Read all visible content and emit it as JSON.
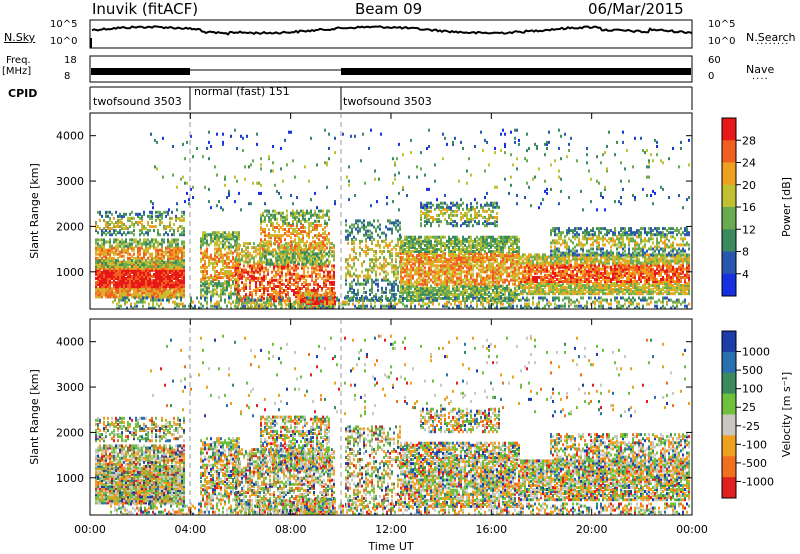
{
  "header": {
    "station": "Inuvik  (fitACF)",
    "beam": "Beam 09",
    "date": "06/Mar/2015"
  },
  "status_panels": {
    "nsky_label": "N.Sky",
    "nsky_tick_top": "10^5",
    "nsky_tick_bottom": "10^0",
    "nsky_right_tick_top": "10^5",
    "nsky_right_tick_bottom": "10^0",
    "nsearch_label": "N.Search",
    "freq_label": "Freq.",
    "freq_unit": "[MHz]",
    "freq_tick_top": "18",
    "freq_tick_bottom": "8",
    "nave_label": "Nave",
    "nave_tick_top": "60",
    "nave_tick_bottom": "0",
    "cpid_label": "CPID",
    "cpid_segments": [
      "twofsound 3503",
      "normal (fast) 151",
      "twofsound 3503"
    ]
  },
  "chart_data": [
    {
      "type": "heatmap",
      "panel": "power",
      "ylabel": "Slant Range [km]",
      "yticks": [
        "1000",
        "2000",
        "3000",
        "4000"
      ],
      "ylim": [
        180,
        4500
      ],
      "xlim": [
        "00:00",
        "24:00"
      ],
      "colorbar_label": "Power [dB]",
      "colorbar_ticks": [
        "4",
        "8",
        "12",
        "16",
        "20",
        "24",
        "28"
      ],
      "colorbar_range": [
        0,
        32
      ],
      "colors": [
        "#1530e0",
        "#2a56b0",
        "#3a8a60",
        "#6aaa50",
        "#c0c030",
        "#f0a020",
        "#f06020",
        "#e81818"
      ]
    },
    {
      "type": "heatmap",
      "panel": "velocity",
      "ylabel": "Slant Range [km]",
      "yticks": [
        "1000",
        "2000",
        "3000",
        "4000"
      ],
      "ylim": [
        180,
        4500
      ],
      "xlim": [
        "00:00",
        "24:00"
      ],
      "colorbar_label": "Velocity  [m s⁻¹]",
      "colorbar_ticks": [
        "1000",
        "500",
        "100",
        "25",
        "-25",
        "-100",
        "-500",
        "-1000"
      ],
      "colors": [
        "#1c3ca8",
        "#2a70b0",
        "#3a8a60",
        "#70c040",
        "#c8c8c0",
        "#f0a020",
        "#f07020",
        "#e02020"
      ]
    }
  ],
  "xaxis": {
    "ticks": [
      "00:00",
      "04:00",
      "08:00",
      "12:00",
      "16:00",
      "20:00",
      "00:00"
    ],
    "label": "Time UT"
  }
}
